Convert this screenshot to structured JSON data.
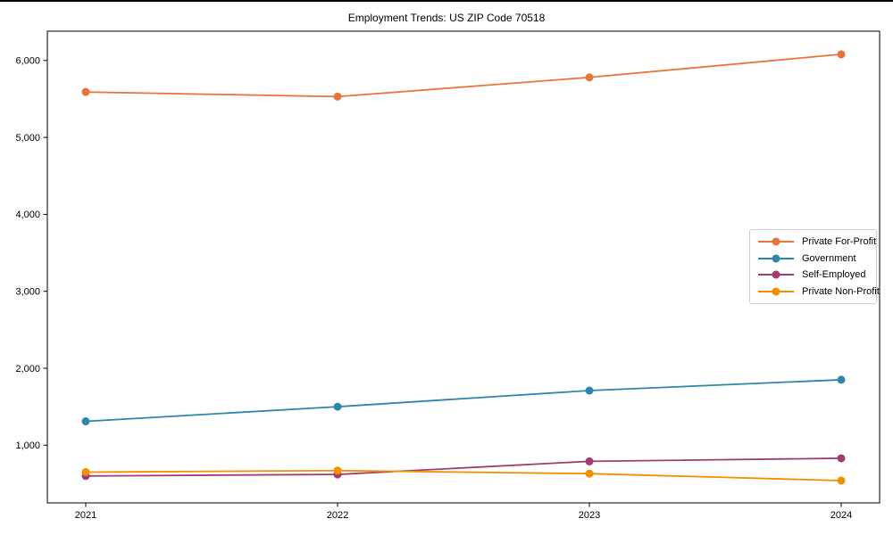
{
  "chart": {
    "background_color": "#ffffff",
    "frame_color": "#000000",
    "legend_border_color": "#cccccc"
  },
  "chart_data": {
    "type": "line",
    "title": "Employment Trends: US ZIP Code 70518",
    "xlabel": "",
    "ylabel": "",
    "categories": [
      "2021",
      "2022",
      "2023",
      "2024"
    ],
    "series": [
      {
        "name": "Private For-Profit",
        "color": "#E8743B",
        "values": [
          5590,
          5530,
          5780,
          6080
        ]
      },
      {
        "name": "Government",
        "color": "#2E86AB",
        "values": [
          1310,
          1500,
          1710,
          1850
        ]
      },
      {
        "name": "Self-Employed",
        "color": "#A23B72",
        "values": [
          600,
          620,
          790,
          830
        ]
      },
      {
        "name": "Private Non-Profit",
        "color": "#F18F01",
        "values": [
          650,
          670,
          630,
          540
        ]
      }
    ],
    "ylim": [
      250,
      6380
    ],
    "yticks": [
      1000,
      2000,
      3000,
      4000,
      5000,
      6000
    ],
    "ytick_labels": [
      "1,000",
      "2,000",
      "3,000",
      "4,000",
      "5,000",
      "6,000"
    ],
    "grid": false,
    "legend_position": "center-right",
    "marker": "circle",
    "line_width": 1.8,
    "marker_radius": 4.5
  }
}
